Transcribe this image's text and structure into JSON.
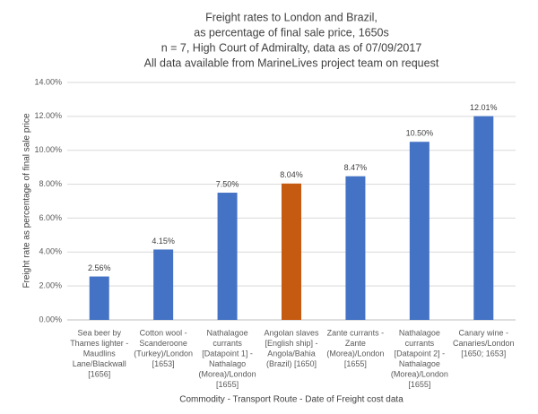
{
  "chart_data": {
    "type": "bar",
    "title": [
      "Freight rates to London and Brazil,",
      "as percentage of final sale price, 1650s",
      "n = 7, High Court of Admiralty, data as of 07/09/2017",
      "All data available from MarineLives project team on request"
    ],
    "x_label": "Commodity - Transport Route - Date of Freight cost data",
    "y_label": "Freight rate as percentage of final sale price",
    "categories": [
      [
        "Sea beer by",
        "Thames lighter -",
        "Maudlins",
        "Lane/Blackwall",
        "[1656]"
      ],
      [
        "Cotton wool -",
        "Scanderoone",
        "(Turkey)/London",
        "[1653]"
      ],
      [
        "Nathalagoe",
        "currants",
        "[Datapoint 1] -",
        "Nathalago",
        "(Morea)/London",
        "[1655]"
      ],
      [
        "Angolan slaves",
        "[English ship] -",
        "Angola/Bahia",
        "(Brazil) [1650]"
      ],
      [
        "Zante currants -",
        "Zante",
        "(Morea)/London",
        "[1655]"
      ],
      [
        "Nathalagoe",
        "currants",
        "[Datapoint 2] -",
        "Nathalagoe",
        "(Morea)/London",
        "[1655]"
      ],
      [
        "Canary wine -",
        "Canaries/London",
        "[1650; 1653]"
      ]
    ],
    "values": [
      2.56,
      4.15,
      7.5,
      8.04,
      8.47,
      10.5,
      12.01
    ],
    "value_labels": [
      "2.56%",
      "4.15%",
      "7.50%",
      "8.04%",
      "8.47%",
      "10.50%",
      "12.01%"
    ],
    "colors": [
      "#4472c4",
      "#4472c4",
      "#4472c4",
      "#c55a11",
      "#4472c4",
      "#4472c4",
      "#4472c4"
    ],
    "ylim": [
      0,
      14
    ],
    "yticks": [
      {
        "value": 0,
        "label": "0.00%"
      },
      {
        "value": 2,
        "label": "2.00%"
      },
      {
        "value": 4,
        "label": "4.00%"
      },
      {
        "value": 6,
        "label": "6.00%"
      },
      {
        "value": 8,
        "label": "8.00%"
      },
      {
        "value": 10,
        "label": "10.00%"
      },
      {
        "value": 12,
        "label": "12.00%"
      },
      {
        "value": 14,
        "label": "14.00%"
      }
    ],
    "grid": true
  }
}
